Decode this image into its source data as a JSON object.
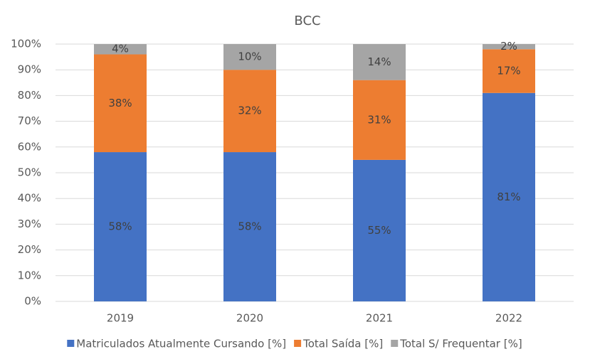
{
  "chart_data": {
    "type": "stacked_bar",
    "title": "BCC",
    "categories": [
      "2019",
      "2020",
      "2021",
      "2022"
    ],
    "series": [
      {
        "name": "Matriculados Atualmente Cursando [%]",
        "color": "#4472c4",
        "values": [
          58,
          58,
          55,
          81
        ],
        "value_labels": [
          "58%",
          "58%",
          "55%",
          "81%"
        ]
      },
      {
        "name": "Total Saída [%]",
        "color": "#ed7d31",
        "values": [
          38,
          32,
          31,
          17
        ],
        "value_labels": [
          "38%",
          "32%",
          "31%",
          "17%"
        ]
      },
      {
        "name": "Total S/ Frequentar [%]",
        "color": "#a5a5a5",
        "values": [
          4,
          10,
          14,
          2
        ],
        "value_labels": [
          "4%",
          "10%",
          "14%",
          "2%"
        ]
      }
    ],
    "ylim": [
      0,
      100
    ],
    "yticks": [
      {
        "value": 0,
        "label": "0%"
      },
      {
        "value": 10,
        "label": "10%"
      },
      {
        "value": 20,
        "label": "20%"
      },
      {
        "value": 30,
        "label": "30%"
      },
      {
        "value": 40,
        "label": "40%"
      },
      {
        "value": 50,
        "label": "50%"
      },
      {
        "value": 60,
        "label": "60%"
      },
      {
        "value": 70,
        "label": "70%"
      },
      {
        "value": 80,
        "label": "80%"
      },
      {
        "value": 90,
        "label": "90%"
      },
      {
        "value": 100,
        "label": "100%"
      }
    ],
    "grid": true,
    "legend": "bottom"
  }
}
